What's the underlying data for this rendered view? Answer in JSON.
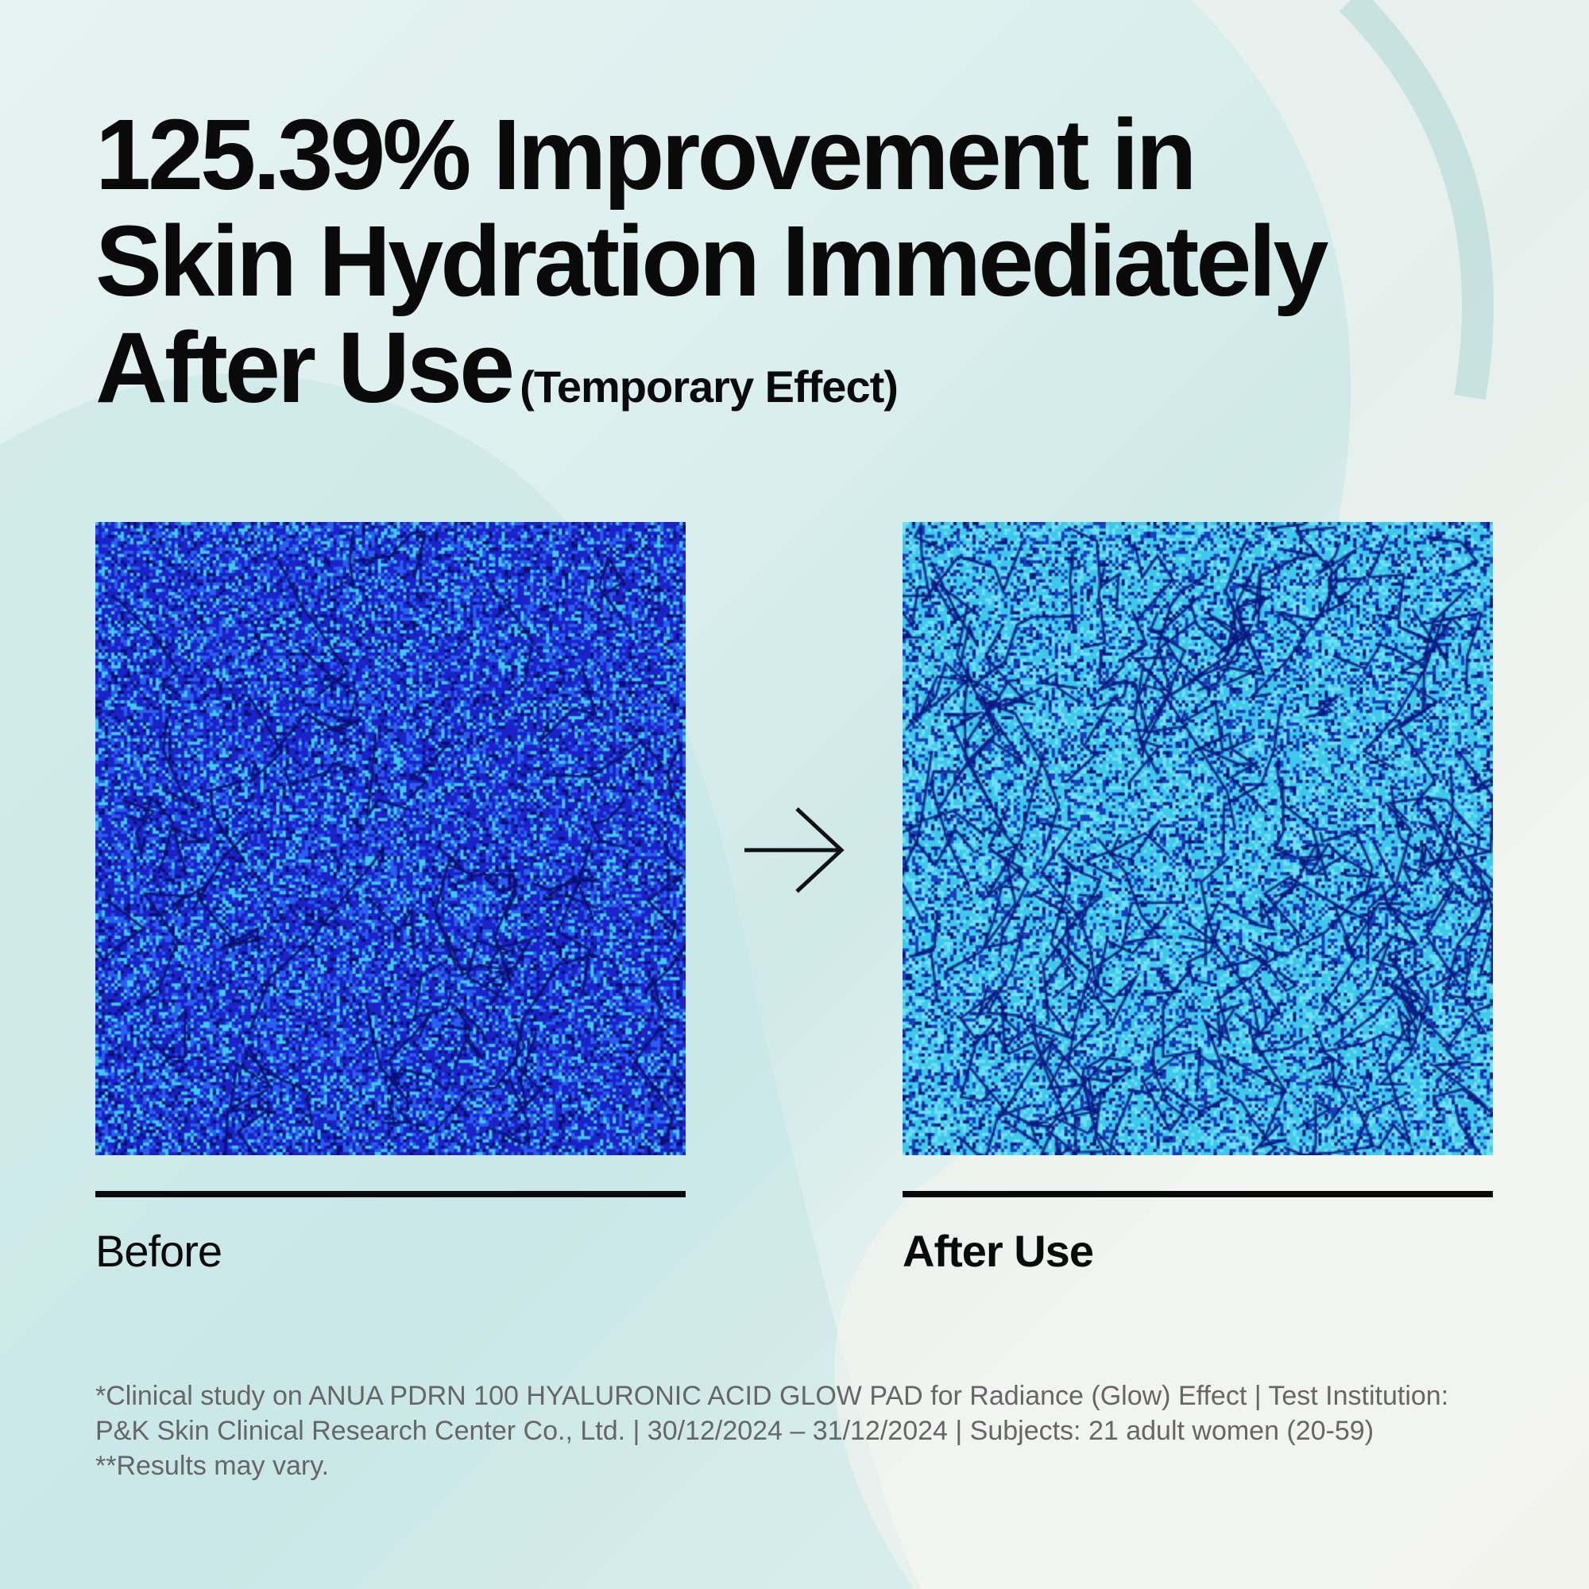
{
  "headline": {
    "line1": "125.39% Improvement in",
    "line2": "Skin Hydration Immediately",
    "line3": "After Use",
    "qualifier": "(Temporary Effect)"
  },
  "comparison": {
    "before": {
      "label": "Before",
      "colors": [
        "#1a22c8",
        "#2a5ef0",
        "#40c8f0",
        "#0a0f70"
      ]
    },
    "after": {
      "label": "After Use",
      "colors": [
        "#3ec8ea",
        "#6ee0f5",
        "#1a40c0",
        "#0a1a80"
      ]
    },
    "arrow_icon": "arrow-right-icon"
  },
  "footnote": "*Clinical study on ANUA PDRN 100 HYALURONIC ACID GLOW PAD for Radiance (Glow) Effect | Test Institution: P&K Skin Clinical Research Center Co., Ltd. | 30/12/2024 – 31/12/2024 | Subjects: 21 adult women (20-59) **Results may vary."
}
